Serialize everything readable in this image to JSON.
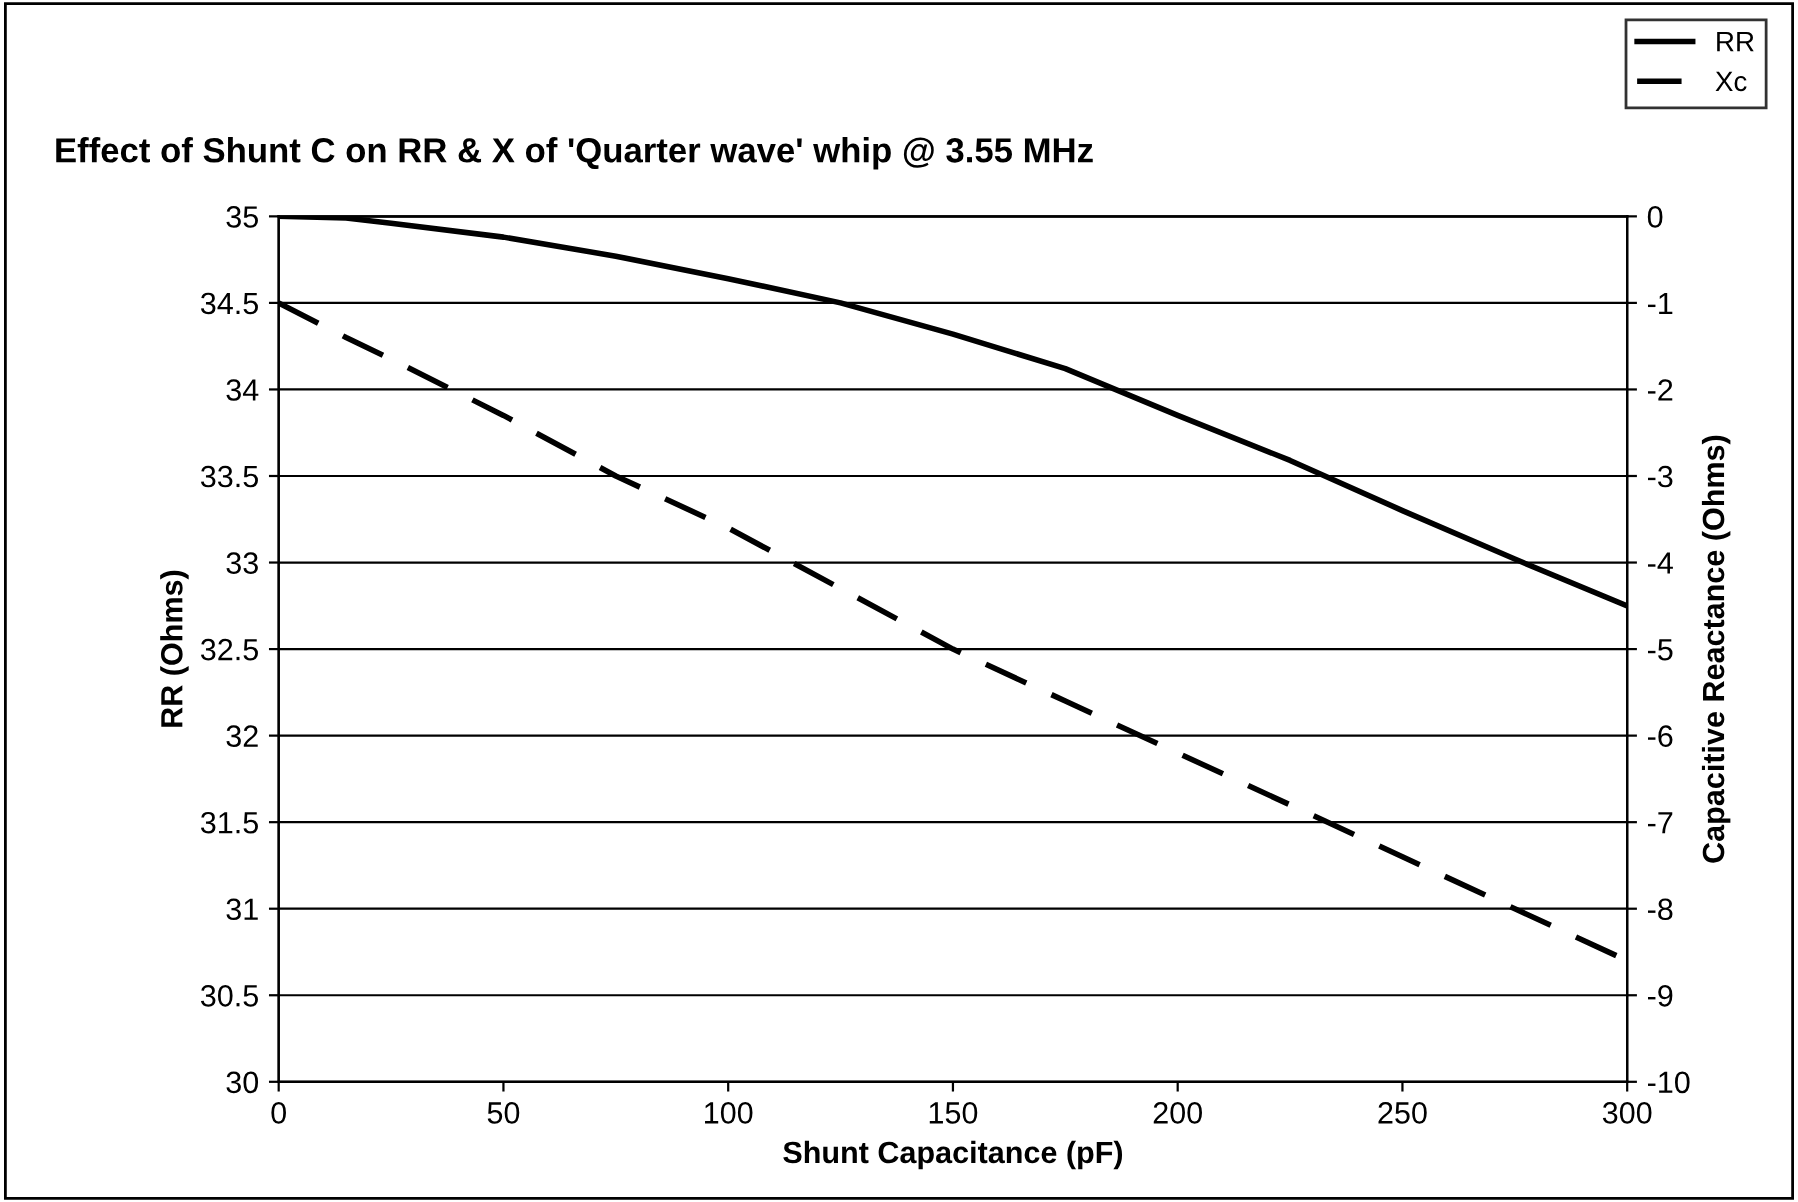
{
  "chart_data": {
    "type": "line",
    "title": "Effect of Shunt C on RR & X of 'Quarter wave' whip @ 3.55 MHz",
    "xlabel": "Shunt Capacitance (pF)",
    "ylabel": "RR (Ohms)",
    "y2label": "Capacitive Reactance (Ohms)",
    "x": [
      0,
      15,
      25,
      50,
      75,
      100,
      125,
      150,
      175,
      200,
      225,
      250,
      275,
      300
    ],
    "series": [
      {
        "name": "RR",
        "color": "#000000",
        "line_style": "solid",
        "values": [
          35,
          34.99,
          34.96,
          34.88,
          34.77,
          34.64,
          34.5,
          34.32,
          34.12,
          33.85,
          33.59,
          33.3,
          33.02,
          32.75
        ]
      },
      {
        "name": "Xc",
        "color": "#000000",
        "line_style": "dashed",
        "axis": "y2",
        "values": [
          -1,
          -1.4,
          -1.65,
          -2.3,
          -3,
          -3.6,
          -4.3,
          -5,
          -5.6,
          -6.2,
          -6.8,
          -7.4,
          -8,
          -8.6
        ]
      }
    ],
    "xlim": [
      0,
      300
    ],
    "xticks": [
      0,
      50,
      100,
      150,
      200,
      250,
      300
    ],
    "ylim": [
      30,
      35
    ],
    "yticks": [
      30,
      30.5,
      31,
      31.5,
      32,
      32.5,
      33,
      33.5,
      34,
      34.5,
      35
    ],
    "y2lim": [
      -10,
      0
    ],
    "y2ticks": [
      -10,
      -9,
      -8,
      -7,
      -6,
      -5,
      -4,
      -3,
      -2,
      -1,
      0
    ],
    "grid": "y",
    "legend": "top right"
  }
}
